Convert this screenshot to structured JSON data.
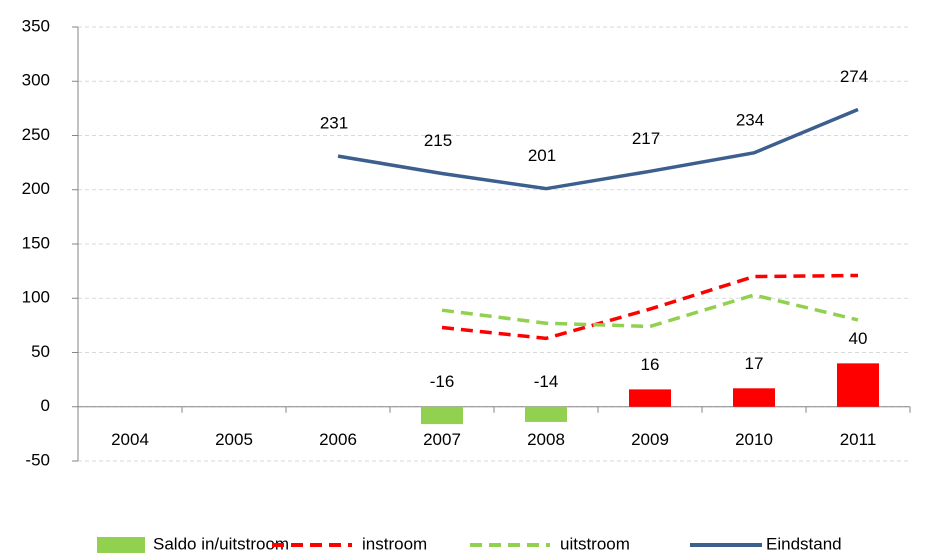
{
  "chart_data": {
    "type": "bar-line",
    "categories": [
      "2004",
      "2005",
      "2006",
      "2007",
      "2008",
      "2009",
      "2010",
      "2011"
    ],
    "series": [
      {
        "name": "Saldo in/uitstroom",
        "kind": "bar",
        "color": "#92d050",
        "colors": [
          "#92d050",
          "#92d050",
          "#92d050",
          "#92d050",
          "#92d050",
          "#ff0000",
          "#ff0000",
          "#ff0000"
        ],
        "values": [
          null,
          null,
          null,
          -16,
          -14,
          16,
          17,
          40
        ],
        "data_labels": true
      },
      {
        "name": "instroom",
        "kind": "line",
        "dash": true,
        "color": "#ff0000",
        "values": [
          null,
          null,
          null,
          73,
          63,
          90,
          120,
          121
        ],
        "data_labels": false
      },
      {
        "name": "uitstroom",
        "kind": "line",
        "dash": true,
        "color": "#92d050",
        "values": [
          null,
          null,
          null,
          89,
          77,
          74,
          103,
          80
        ],
        "data_labels": false
      },
      {
        "name": "Eindstand",
        "kind": "line",
        "dash": false,
        "color": "#3c5f8e",
        "values": [
          null,
          null,
          231,
          215,
          201,
          217,
          234,
          274
        ],
        "data_labels": true
      }
    ],
    "ylim": [
      -50,
      350
    ],
    "yticks": [
      -50,
      0,
      50,
      100,
      150,
      200,
      250,
      300,
      350
    ],
    "grid": true,
    "legend": "bottom"
  }
}
